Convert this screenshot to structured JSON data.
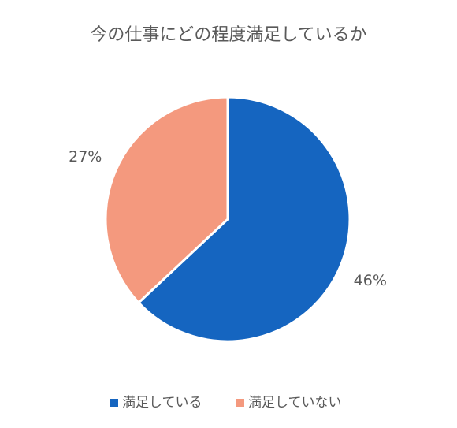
{
  "chart_data": {
    "type": "pie",
    "title": "今の仕事にどの程度満足しているか",
    "categories": [
      "満足している",
      "満足していない"
    ],
    "values": [
      46,
      27
    ],
    "value_labels": [
      "46%",
      "27%"
    ],
    "colors": [
      "#1565c0",
      "#f4997e"
    ],
    "legend": "bottom"
  }
}
